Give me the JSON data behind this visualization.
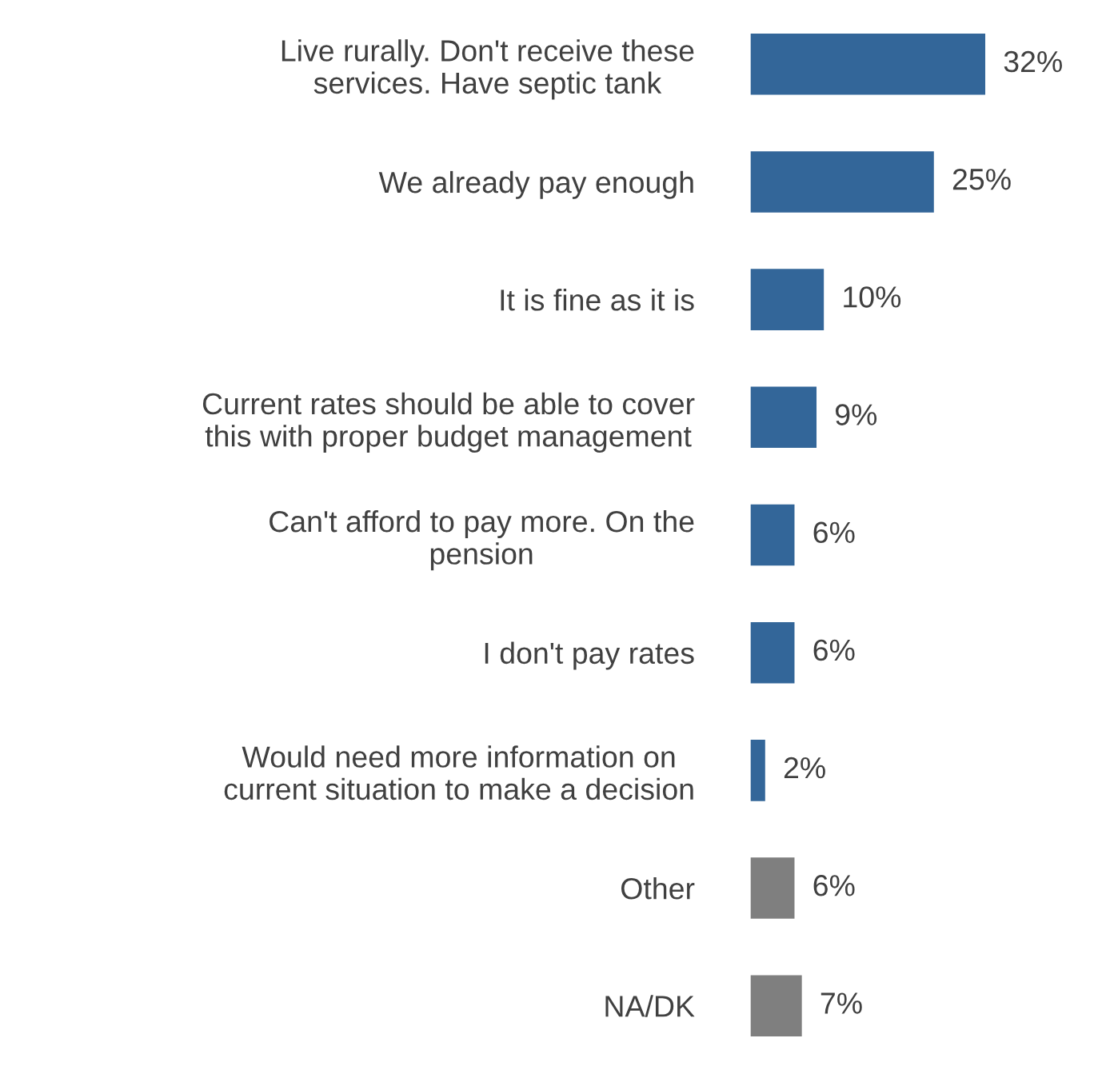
{
  "chart_data": {
    "type": "bar",
    "orientation": "horizontal",
    "categories": [
      "Live rurally. Don't receive these\nservices. Have septic tank",
      "We already pay enough",
      "It is fine as it is",
      "Current rates should be able to cover\nthis with proper budget management",
      "Can't afford to pay more. On the\npension",
      "I don't pay rates",
      "Would need more information on\ncurrent situation to make a decision",
      "Other",
      "NA/DK"
    ],
    "values": [
      32,
      25,
      10,
      9,
      6,
      6,
      2,
      6,
      7
    ],
    "colors": [
      "#336699",
      "#336699",
      "#336699",
      "#336699",
      "#336699",
      "#336699",
      "#336699",
      "#7f7f7f",
      "#7f7f7f"
    ],
    "value_labels": [
      "32%",
      "25%",
      "10%",
      "9%",
      "6%",
      "6%",
      "2%",
      "6%",
      "7%"
    ]
  }
}
